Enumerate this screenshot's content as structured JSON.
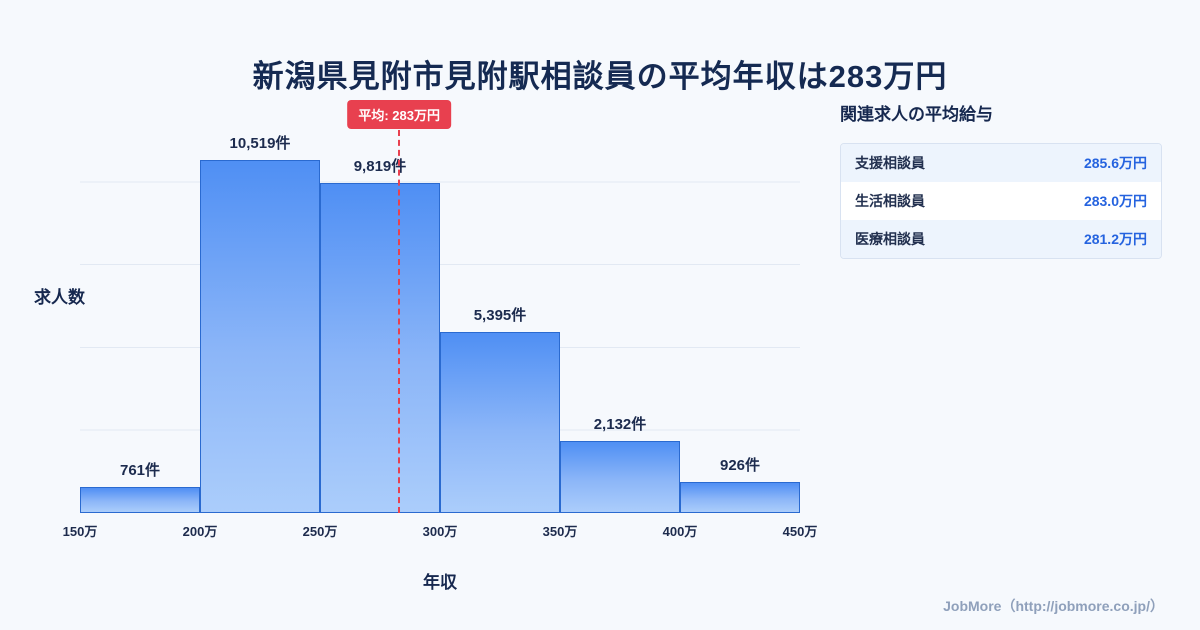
{
  "page": {
    "title": "新潟県見附市見附駅相談員の平均年収は283万円",
    "footer": "JobMore（http://jobmore.co.jp/）"
  },
  "chart_data": {
    "type": "bar",
    "title": "新潟県見附市見附駅相談員の平均年収は283万円",
    "xlabel": "年収",
    "ylabel": "求人数",
    "bin_edges": [
      150,
      200,
      250,
      300,
      350,
      400,
      450
    ],
    "bin_edge_labels": [
      "150万",
      "200万",
      "250万",
      "300万",
      "350万",
      "400万",
      "450万"
    ],
    "values": [
      761,
      10519,
      9819,
      5395,
      2132,
      926
    ],
    "value_labels": [
      "761件",
      "10,519件",
      "9,819件",
      "5,395件",
      "2,132件",
      "926件"
    ],
    "average": {
      "value": 283,
      "label": "平均: 283万円"
    },
    "ylim": [
      0,
      10519
    ],
    "grid": "horizontal",
    "legend": "none",
    "colors": {
      "bar_top": "#4f8ff4",
      "bar_bottom": "#abcdfb",
      "bar_border": "#2a6ad0",
      "average_line": "#e8404f",
      "background": "#f6f9fd"
    }
  },
  "side_panel": {
    "title": "関連求人の平均給与",
    "rows": [
      {
        "label": "支援相談員",
        "value": "285.6万円"
      },
      {
        "label": "生活相談員",
        "value": "283.0万円"
      },
      {
        "label": "医療相談員",
        "value": "281.2万円"
      }
    ]
  }
}
